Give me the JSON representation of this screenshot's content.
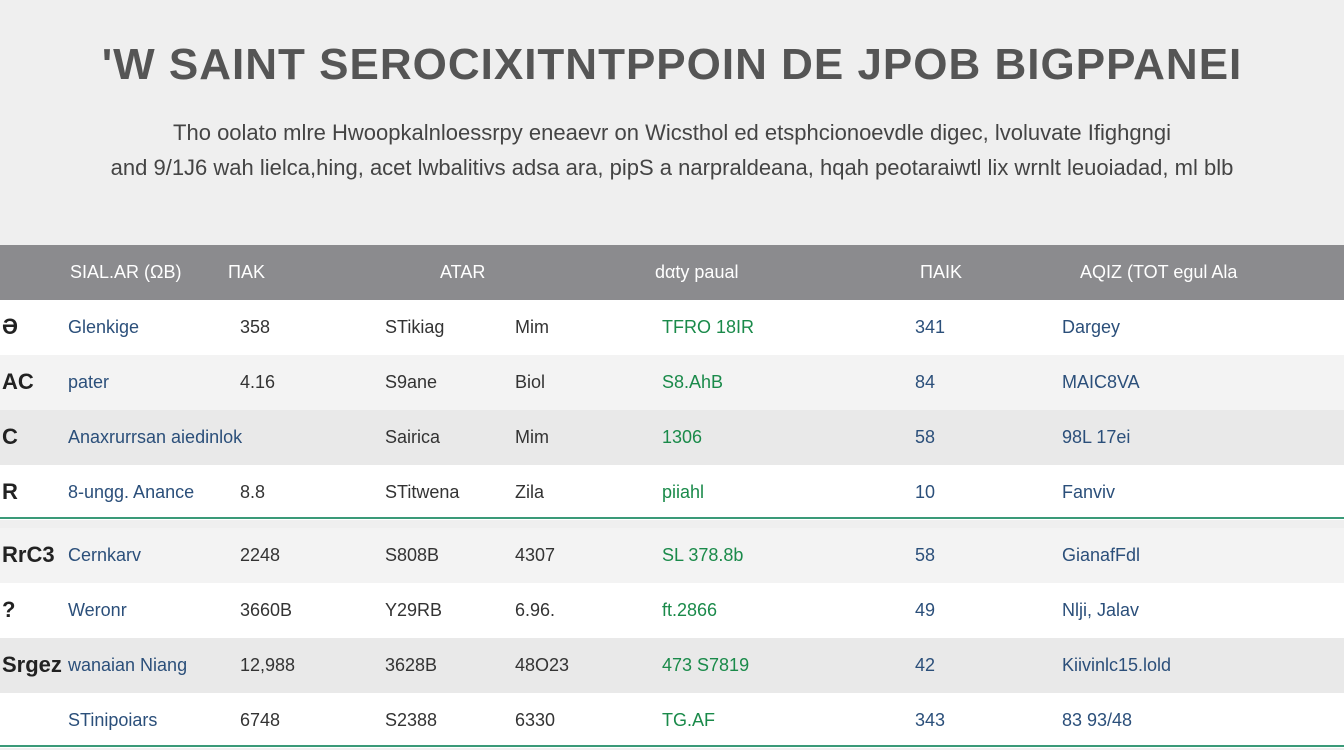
{
  "header": {
    "title": "'W SAINT SEROCIXITNTPPOIN DE JPOB BIGPPANEI",
    "subtitle": [
      "Tho oolato mlre  Hwoopkalnloessrpy eneaevr on Wicsthol ed etsphcionoevdle digec, lvoluvate Ifighgngi",
      "and 9/1J6 wah lielca,hing, acet lwbalitivs adsa ara, pipS a narpraldeana, hqah peotaraiwtl lix wrnlt leuoiadad, ml blb"
    ]
  },
  "table": {
    "columns": [
      "SIAL.AR (ΩB)",
      "ПAK",
      "ATAR",
      "dαty  paual",
      "ПAIK",
      "AQIZ  (TOT egul Ala"
    ],
    "rows": [
      {
        "logo": "Ə",
        "name": "Glenkige",
        "num": "358",
        "item": "STikiag",
        "extra": "Mim",
        "value": "TFRO 18IR",
        "count": "341",
        "status": "Dargey"
      },
      {
        "logo": "AC",
        "name": "pater",
        "num": "4.16",
        "item": "S9ane",
        "extra": "Biol",
        "value": "S8.AhB",
        "count": "84",
        "status": "MAIC8VA"
      },
      {
        "logo": "C",
        "name": "Anaxrurrsan aiedinlok",
        "item": "Sairica",
        "extra": "Mim",
        "value": "1306",
        "count": "58",
        "status": "98L 17ei"
      },
      {
        "logo": "R",
        "name": "8-ungg. Anance",
        "num": "8.8",
        "item": "STitwena",
        "extra": "Zila",
        "value": "piiahl",
        "count": "10",
        "status": "Fanviv"
      },
      {
        "logo": "RrC3",
        "name": "Cernkarv",
        "num": "2248",
        "item": "S808B",
        "extra": "4307",
        "value": "SL 378.8b",
        "count": "58",
        "status": "GianafFdl"
      },
      {
        "logo": "?",
        "name": "Weronr",
        "num": "3660B",
        "item": "Y29RB",
        "extra": "6.96.",
        "value": "ft.2866",
        "count": "49",
        "status": "Nlji, Jalav"
      },
      {
        "logo": "Srgez",
        "name": "wanaian Niang",
        "num": "12,988",
        "item": "3628B",
        "extra": "48O23",
        "value": "473 S7819",
        "count": "42",
        "status": "Kiivinlc15.lold"
      },
      {
        "name": "STinipoiars",
        "num": "6748",
        "item": "S2388",
        "extra": "6330",
        "value": "TG.AF",
        "count": "343",
        "status": "83 93/48"
      }
    ]
  }
}
